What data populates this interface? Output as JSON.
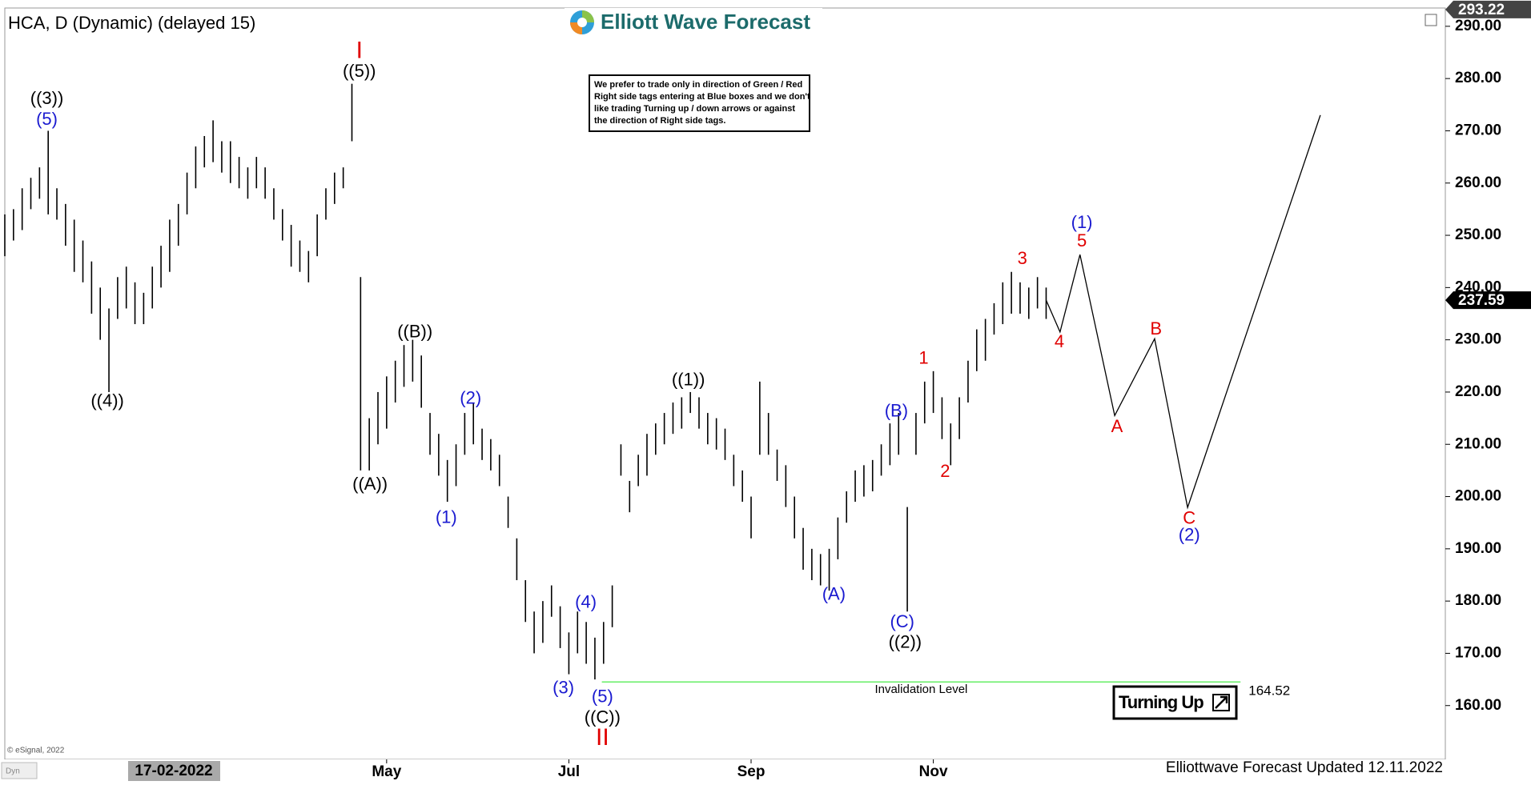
{
  "header": {
    "symbol_title": "HCA, D (Dynamic) (delayed 15)",
    "logo": "Elliott Wave Forecast",
    "note": [
      "We prefer to trade only in direction of Green / Red",
      "Right side tags entering at Blue boxes and we don't",
      "like trading Turning up / down arrows or against",
      "the direction of Right side tags."
    ],
    "copyright": "© eSignal, 2022",
    "footer": "Elliottwave Forecast Updated 12.11.2022",
    "cursor_date": "17-02-2022",
    "mode": "Dyn"
  },
  "chart_data": {
    "type": "ohlc",
    "series": [
      {
        "color": "#000000",
        "high": [
          254,
          255,
          259,
          261,
          263,
          270,
          259,
          256,
          253,
          249,
          245,
          240,
          236,
          242,
          244,
          241,
          239,
          244,
          248,
          253,
          256,
          262,
          267,
          269,
          272,
          268,
          268,
          265,
          263,
          265,
          263,
          259,
          255,
          252,
          249,
          247,
          254,
          259,
          262,
          263,
          279,
          242,
          215,
          220,
          223,
          226,
          229,
          230,
          227,
          216,
          212,
          207,
          210,
          216,
          218,
          213,
          211,
          208,
          200,
          192,
          184,
          178,
          180,
          183,
          179,
          174,
          178,
          176,
          173,
          176,
          183,
          210,
          203,
          208,
          212,
          214,
          216,
          218,
          219,
          220,
          219,
          216,
          215,
          213,
          208,
          205,
          200,
          222,
          216,
          209,
          206,
          200,
          194,
          190,
          189,
          190,
          196,
          201,
          205,
          206,
          207,
          210,
          214,
          216,
          198,
          216,
          222,
          224,
          219,
          214,
          219,
          226,
          232,
          234,
          237,
          241,
          243,
          241,
          240,
          242,
          240
        ],
        "low": [
          246,
          249,
          251,
          255,
          257,
          254,
          253,
          248,
          243,
          241,
          235,
          230,
          220,
          234,
          236,
          233,
          233,
          236,
          240,
          243,
          248,
          254,
          259,
          263,
          264,
          262,
          260,
          259,
          257,
          259,
          257,
          253,
          249,
          244,
          243,
          241,
          246,
          253,
          256,
          259,
          268,
          205,
          205,
          210,
          213,
          218,
          221,
          222,
          217,
          208,
          204,
          199,
          202,
          208,
          210,
          207,
          205,
          202,
          194,
          184,
          176,
          170,
          172,
          177,
          171,
          166,
          170,
          168,
          165,
          168,
          175,
          204,
          197,
          202,
          204,
          208,
          210,
          212,
          213,
          216,
          213,
          210,
          209,
          207,
          202,
          199,
          192,
          208,
          208,
          203,
          198,
          192,
          186,
          184,
          183,
          182,
          188,
          195,
          199,
          200,
          201,
          204,
          206,
          208,
          178,
          208,
          214,
          216,
          211,
          206,
          211,
          218,
          224,
          226,
          231,
          233,
          235,
          235,
          234,
          236,
          234
        ]
      }
    ],
    "xlim": [
      0,
      166
    ],
    "xticks": [
      {
        "value": 44,
        "label": "May"
      },
      {
        "value": 65,
        "label": "Jul"
      },
      {
        "value": 86,
        "label": "Sep"
      },
      {
        "value": 107,
        "label": "Nov"
      }
    ],
    "ylim": [
      149.7,
      293.5
    ],
    "yticks": [
      {
        "value": 160,
        "label": "160.00"
      },
      {
        "value": 170,
        "label": "170.00"
      },
      {
        "value": 180,
        "label": "180.00"
      },
      {
        "value": 190,
        "label": "190.00"
      },
      {
        "value": 200,
        "label": "200.00"
      },
      {
        "value": 210,
        "label": "210.00"
      },
      {
        "value": 220,
        "label": "220.00"
      },
      {
        "value": 230,
        "label": "230.00"
      },
      {
        "value": 240,
        "label": "240.00"
      },
      {
        "value": 250,
        "label": "250.00"
      },
      {
        "value": 260,
        "label": "260.00"
      },
      {
        "value": 270,
        "label": "270.00"
      },
      {
        "value": 280,
        "label": "280.00"
      },
      {
        "value": 290,
        "label": "290.00"
      }
    ],
    "grid": false,
    "last_price": 237.59,
    "high_price": 293.22,
    "projection": {
      "color": "#000000",
      "x": [
        120,
        121.6,
        123.9,
        127.9,
        132.5,
        136.3,
        151.6
      ],
      "values": [
        237.59,
        231.5,
        246.3,
        215.5,
        230.2,
        197.9,
        273
      ]
    },
    "invalidation": {
      "label": "Invalidation Level",
      "value": 164.52,
      "color": "#66ee66",
      "x": [
        68.8,
        142.4
      ]
    },
    "signal": "Turning Up",
    "annotations": [
      {
        "text": "I",
        "color": "#e00000"
      },
      {
        "text": "((5))",
        "color": "#000000"
      },
      {
        "text": "((3))",
        "color": "#000000"
      },
      {
        "text": "(5)",
        "color": "#1a1ad0"
      },
      {
        "text": "((4))",
        "color": "#000000"
      },
      {
        "text": "((B))",
        "color": "#000000"
      },
      {
        "text": "((A))",
        "color": "#000000"
      },
      {
        "text": "(2)",
        "color": "#1a1ad0"
      },
      {
        "text": "(1)",
        "color": "#1a1ad0"
      },
      {
        "text": "(4)",
        "color": "#1a1ad0"
      },
      {
        "text": "(3)",
        "color": "#1a1ad0"
      },
      {
        "text": "(5)",
        "color": "#1a1ad0"
      },
      {
        "text": "((C))",
        "color": "#000000"
      },
      {
        "text": "II",
        "color": "#e00000"
      },
      {
        "text": "((1))",
        "color": "#000000"
      },
      {
        "text": "(A)",
        "color": "#1a1ad0"
      },
      {
        "text": "(B)",
        "color": "#1a1ad0"
      },
      {
        "text": "(C)",
        "color": "#1a1ad0"
      },
      {
        "text": "((2))",
        "color": "#000000"
      },
      {
        "text": "1",
        "color": "#e00000"
      },
      {
        "text": "2",
        "color": "#e00000"
      },
      {
        "text": "3",
        "color": "#e00000"
      },
      {
        "text": "4",
        "color": "#e00000"
      },
      {
        "text": "(1)",
        "color": "#1a1ad0"
      },
      {
        "text": "5",
        "color": "#e00000"
      },
      {
        "text": "B",
        "color": "#e00000"
      },
      {
        "text": "A",
        "color": "#e00000"
      },
      {
        "text": "C",
        "color": "#e00000"
      },
      {
        "text": "(2)",
        "color": "#1a1ad0"
      }
    ]
  }
}
